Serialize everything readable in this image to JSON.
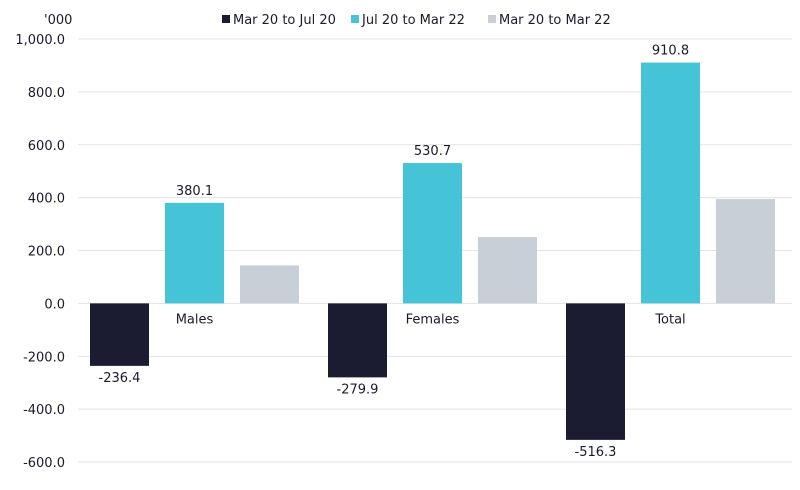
{
  "chart_data": {
    "type": "bar",
    "unit_label": "'000",
    "categories": [
      "Males",
      "Females",
      "Total"
    ],
    "series": [
      {
        "name": "Mar 20 to Jul 20",
        "color": "#1b1b32",
        "values": [
          -236.4,
          -279.9,
          -516.3
        ],
        "labels": [
          "-236.4",
          "-279.9",
          "-516.3"
        ]
      },
      {
        "name": "Jul 20 to Mar 22",
        "color": "#44c4d6",
        "values": [
          380.1,
          530.7,
          910.8
        ],
        "labels": [
          "380.1",
          "530.7",
          "910.8"
        ]
      },
      {
        "name": "Mar 20 to Mar 22",
        "color": "#c9cfd7",
        "values": [
          143.7,
          250.8,
          394.5
        ],
        "labels": [
          "",
          "",
          ""
        ]
      }
    ],
    "ylim": [
      -600,
      1000
    ],
    "yticks": [
      1000,
      800,
      600,
      400,
      200,
      0,
      -200,
      -400,
      -600
    ],
    "ytick_labels": [
      "1,000.0",
      "800.0",
      "600.0",
      "400.0",
      "200.0",
      "0.0",
      "-200.0",
      "-400.0",
      "-600.0"
    ],
    "grid": true,
    "legend_position": "top"
  }
}
